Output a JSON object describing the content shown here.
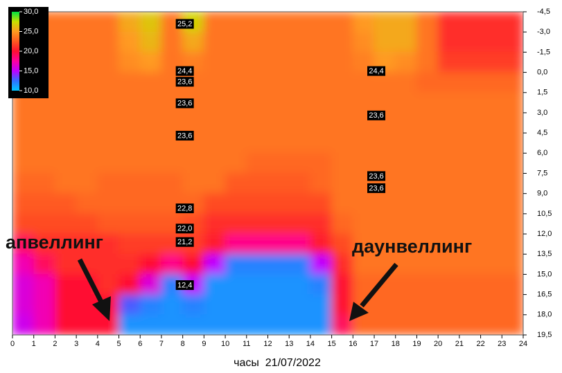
{
  "chart_data": {
    "type": "heatmap",
    "xlabel": "часы  21/07/2022",
    "annotations": [
      "апвеллинг",
      "даунвеллинг"
    ],
    "xlim": [
      0,
      24
    ],
    "xticks": [
      0,
      1,
      2,
      3,
      4,
      5,
      6,
      7,
      8,
      9,
      10,
      11,
      12,
      13,
      14,
      15,
      16,
      17,
      18,
      19,
      20,
      21,
      22,
      23,
      24
    ],
    "ylim": [
      -4.5,
      19.5
    ],
    "y_reversed": true,
    "yticks": [
      {
        "value": -4.5,
        "label": "-4,5"
      },
      {
        "value": -3,
        "label": "-3,0"
      },
      {
        "value": -1.5,
        "label": "-1,5"
      },
      {
        "value": 0,
        "label": "0,0"
      },
      {
        "value": 1.5,
        "label": "1,5"
      },
      {
        "value": 3,
        "label": "3,0"
      },
      {
        "value": 4.5,
        "label": "4,5"
      },
      {
        "value": 6,
        "label": "6,0"
      },
      {
        "value": 7.5,
        "label": "7,5"
      },
      {
        "value": 9,
        "label": "9,0"
      },
      {
        "value": 10.5,
        "label": "10,5"
      },
      {
        "value": 12,
        "label": "12,0"
      },
      {
        "value": 13.5,
        "label": "13,5"
      },
      {
        "value": 15,
        "label": "15,0"
      },
      {
        "value": 16.5,
        "label": "16,5"
      },
      {
        "value": 18,
        "label": "18,0"
      },
      {
        "value": 19.5,
        "label": "19,5"
      }
    ],
    "clim": [
      10,
      30
    ],
    "cticks": [
      {
        "value": 30,
        "label": "30,0"
      },
      {
        "value": 25,
        "label": "25,0"
      },
      {
        "value": 20,
        "label": "20,0"
      },
      {
        "value": 15,
        "label": "15,0"
      },
      {
        "value": 10,
        "label": "10,0"
      }
    ],
    "colormap": [
      "#00c8ff",
      "#3070ff",
      "#c000ff",
      "#ff00a0",
      "#ff1030",
      "#ff5a20",
      "#ff9a20",
      "#c8e000",
      "#00e040"
    ],
    "xbins": [
      0,
      1,
      2,
      3,
      4,
      5,
      6,
      7,
      8,
      9,
      10,
      11,
      12,
      13,
      14,
      15,
      16,
      17,
      18,
      19,
      20,
      21,
      22,
      23,
      24
    ],
    "ybins": [
      -4.5,
      -3,
      -1.5,
      0,
      1.5,
      3,
      4.5,
      6,
      7.5,
      9,
      10.5,
      12,
      13.5,
      15,
      16.5,
      18,
      19.5
    ],
    "z": [
      [
        23.5,
        23.5,
        23.5,
        23.5,
        23.5,
        25.5,
        26.5,
        23.5,
        27,
        23.5,
        23.5,
        23.5,
        23.5,
        23.5,
        23.5,
        23.5,
        25,
        25.5,
        25.5,
        23.5,
        21,
        21,
        21,
        21
      ],
      [
        23.5,
        23.5,
        23.5,
        23.5,
        23.5,
        25,
        26,
        23.5,
        25.5,
        23.5,
        23.5,
        23.5,
        23.5,
        23.5,
        23.5,
        23.5,
        24.5,
        25.5,
        25.5,
        23.5,
        21,
        21,
        21,
        21
      ],
      [
        23.5,
        23.5,
        23.5,
        23.5,
        23.5,
        24.5,
        25,
        23.5,
        24,
        23.5,
        23.5,
        23.5,
        23.5,
        23.5,
        23.5,
        23.5,
        24,
        25,
        24.5,
        23.5,
        21.5,
        21.5,
        21.5,
        21.5
      ],
      [
        23.5,
        23.5,
        23.5,
        23.5,
        23.5,
        23.5,
        23.5,
        23.5,
        23.5,
        23.5,
        23.5,
        23.5,
        23.5,
        23.5,
        23.5,
        23.5,
        23.5,
        23.5,
        23.5,
        23,
        23,
        23,
        23,
        23
      ],
      [
        23.5,
        23.5,
        23.5,
        23.5,
        23.5,
        23.5,
        23.5,
        23.5,
        23.5,
        23.5,
        23.5,
        23.5,
        23.5,
        23.5,
        23.5,
        23.5,
        23.5,
        23.5,
        23.5,
        23.5,
        23.5,
        23.5,
        23.5,
        23.5
      ],
      [
        23.5,
        23.5,
        23.5,
        23.5,
        23.5,
        23.5,
        23.5,
        23.5,
        23.5,
        23.5,
        23.5,
        23.5,
        23.5,
        23.5,
        23.5,
        23.5,
        23.5,
        23.5,
        23.5,
        23.5,
        23.5,
        23.5,
        23.5,
        23.5
      ],
      [
        23.5,
        23.5,
        23.5,
        23.5,
        23.5,
        23.5,
        23.5,
        23.5,
        23.5,
        23.5,
        23.5,
        23.5,
        23.5,
        23.5,
        23.5,
        23.5,
        23.5,
        23.5,
        23.5,
        23.5,
        23.5,
        23.5,
        23.5,
        23.5
      ],
      [
        23.5,
        23.5,
        23.5,
        23.5,
        23.5,
        23.5,
        23.5,
        23.5,
        23.5,
        23.5,
        23.5,
        23,
        23,
        23,
        23,
        23.5,
        23.5,
        23.5,
        23.5,
        23.5,
        23.5,
        23.5,
        23.5,
        23.5
      ],
      [
        23,
        23,
        23.5,
        23.5,
        23,
        23,
        23,
        23,
        23.5,
        23.5,
        22.5,
        22.5,
        22.5,
        22.5,
        23,
        23.5,
        23.5,
        23.5,
        23.5,
        23.5,
        23.5,
        23.5,
        23.5,
        23.5
      ],
      [
        22.5,
        22.5,
        22.5,
        23,
        23,
        23,
        23,
        23,
        23,
        22,
        22,
        22,
        22,
        22,
        22,
        23.5,
        23.5,
        23.5,
        23.5,
        23.5,
        23.5,
        23.5,
        23.5,
        23.5
      ],
      [
        22,
        22,
        22,
        22,
        22.5,
        22.5,
        22.5,
        22.5,
        22,
        21,
        21,
        21,
        21,
        21,
        21,
        23,
        23.5,
        23.5,
        23.5,
        23.5,
        23.5,
        23.5,
        23.5,
        23.5
      ],
      [
        19,
        21,
        21,
        21,
        21,
        21.5,
        21.5,
        21.5,
        21.5,
        20.5,
        18,
        18,
        18,
        18,
        20.5,
        22,
        23.5,
        23.5,
        23.5,
        23.5,
        23.5,
        23.5,
        23.5,
        23.5
      ],
      [
        17,
        19,
        21,
        21,
        21,
        21,
        20,
        18,
        20,
        15,
        12,
        12,
        12,
        12,
        15,
        21,
        23.5,
        23.5,
        23.5,
        23.5,
        23.5,
        23.5,
        23.5,
        23.5
      ],
      [
        16,
        17,
        20,
        20,
        21,
        20,
        16,
        12,
        15,
        11.5,
        11.5,
        11.5,
        11.5,
        11.5,
        12,
        20,
        23,
        23,
        23,
        23,
        23,
        23,
        23,
        23
      ],
      [
        16,
        17,
        20,
        20,
        20,
        13,
        12,
        11.5,
        12,
        11.5,
        11.5,
        11.5,
        11.5,
        11.5,
        11.5,
        20,
        23,
        23,
        23,
        23,
        23,
        23,
        23,
        23
      ],
      [
        15.5,
        17,
        20,
        20,
        20,
        11.5,
        11.5,
        11.5,
        11.5,
        11.5,
        11.5,
        11.5,
        11.5,
        11.5,
        11.5,
        19,
        23,
        23,
        23,
        23,
        23,
        23,
        23,
        23
      ]
    ],
    "points": {
      "x": [
        8,
        8,
        8,
        8,
        8,
        8,
        8,
        8,
        8,
        17,
        17,
        17,
        17
      ],
      "y": [
        -3.6,
        -0.1,
        0.7,
        2.3,
        4.7,
        10.1,
        11.6,
        12.6,
        15.8,
        -0.1,
        3.2,
        7.7,
        8.6
      ],
      "values": [
        25.2,
        24.4,
        23.6,
        23.6,
        23.6,
        22.8,
        22.0,
        21.2,
        12.4,
        24.4,
        23.6,
        23.6,
        23.6
      ],
      "value_labels": [
        "25,2",
        "24,4",
        "23,6",
        "23,6",
        "23,6",
        "22,8",
        "22,0",
        "21,2",
        "12,4",
        "24,4",
        "23,6",
        "23,6",
        "23,6"
      ]
    }
  }
}
